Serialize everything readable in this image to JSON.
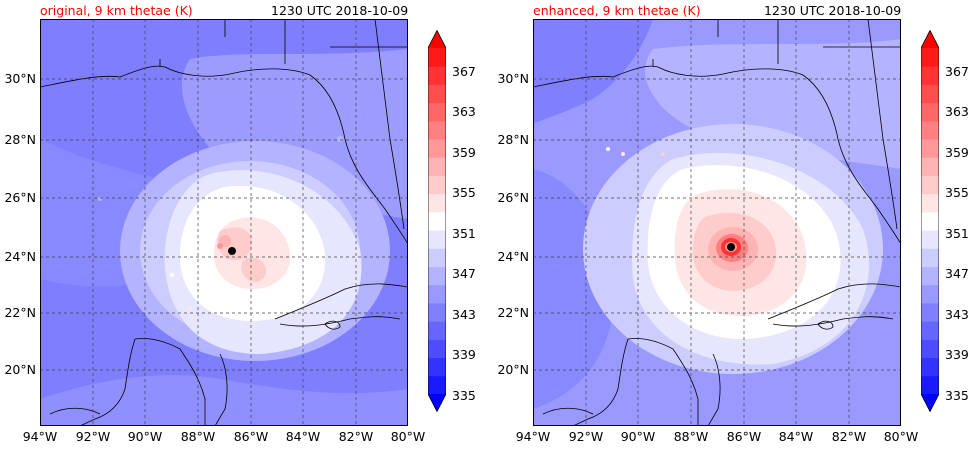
{
  "panels": [
    {
      "title_left": "original, 9 km thetae (K)",
      "title_right": "1230 UTC 2018-10-09",
      "storm_center": {
        "lon": -86.7,
        "lat": 24.2
      }
    },
    {
      "title_left": "enhanced, 9 km thetae (K)",
      "title_right": "1230 UTC 2018-10-09",
      "storm_center": {
        "lon": -86.3,
        "lat": 24.3
      }
    }
  ],
  "latitude_labels": [
    "30°N",
    "28°N",
    "26°N",
    "24°N",
    "22°N",
    "20°N"
  ],
  "longitude_labels": [
    "94°W",
    "92°W",
    "90°W",
    "88°W",
    "86°W",
    "84°W",
    "82°W",
    "80°W"
  ],
  "colorbar": {
    "tick_labels": [
      "367",
      "363",
      "359",
      "355",
      "351",
      "347",
      "343",
      "339",
      "335"
    ],
    "colors": [
      "#1a1aff",
      "#3333ff",
      "#4d4dff",
      "#6666ff",
      "#8080ff",
      "#9999ff",
      "#b3b3ff",
      "#ccccff",
      "#e6e6ff",
      "#ffffff",
      "#ffe6e6",
      "#ffcccc",
      "#ffb3b3",
      "#ff9999",
      "#ff8080",
      "#ff6666",
      "#ff4d4d",
      "#ff3333",
      "#ff1a1a"
    ],
    "under_color": "#0000ff",
    "over_color": "#ff0000"
  },
  "map_extent": {
    "lon": [
      -94,
      -80
    ],
    "lat": [
      18.2,
      32
    ]
  }
}
